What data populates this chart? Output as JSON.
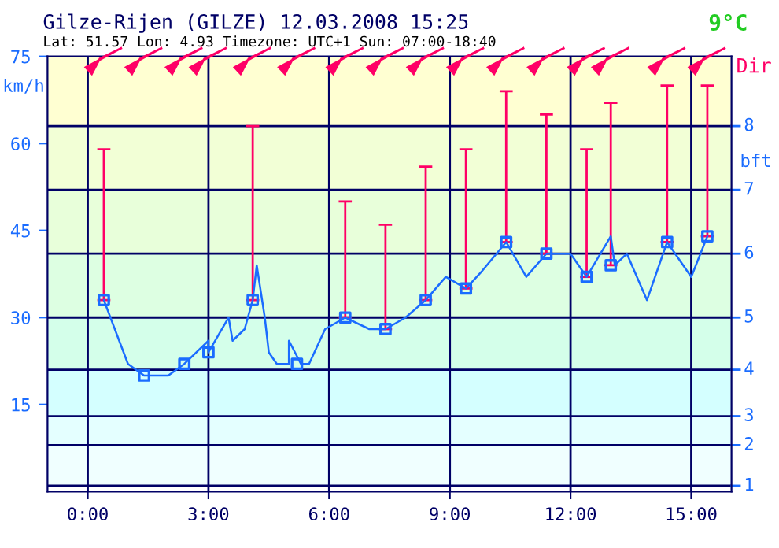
{
  "chart_data": {
    "type": "line",
    "title": "Gilze-Rijen (GILZE) 12.03.2008 15:25",
    "subtitle": "Lat: 51.57 Lon: 4.93 Timezone: UTC+1 Sun: 07:00-18:40",
    "ylabel": "km/h",
    "annotations": [
      "Dir",
      "9°C",
      "bft",
      "1",
      "2",
      "3",
      "4",
      "5",
      "6",
      "7",
      "8"
    ],
    "xlim": [
      -1,
      16
    ],
    "xticks": [
      {
        "value": 0,
        "label": "0:00"
      },
      {
        "value": 3,
        "label": "3:00"
      },
      {
        "value": 6,
        "label": "6:00"
      },
      {
        "value": 9,
        "label": "9:00"
      },
      {
        "value": 12,
        "label": "12:00"
      },
      {
        "value": 15,
        "label": "15:00"
      }
    ],
    "ylim": [
      0,
      75
    ],
    "yticks": [
      15,
      30,
      45,
      60,
      75
    ],
    "grid": "x",
    "bands": [
      {
        "axis": "y",
        "from": 1,
        "to": 8,
        "color": "#f0ffff"
      },
      {
        "axis": "y",
        "from": 8,
        "to": 13,
        "color": "#e4ffff"
      },
      {
        "axis": "y",
        "from": 13,
        "to": 21,
        "color": "#d4ffff"
      },
      {
        "axis": "y",
        "from": 21,
        "to": 30,
        "color": "#d4ffea"
      },
      {
        "axis": "y",
        "from": 30,
        "to": 41,
        "color": "#ddffe2"
      },
      {
        "axis": "y",
        "from": 41,
        "to": 52,
        "color": "#e8ffda"
      },
      {
        "axis": "y",
        "from": 52,
        "to": 63,
        "color": "#f2ffd6"
      },
      {
        "axis": "y",
        "from": 63,
        "to": 75,
        "color": "#ffffd2"
      }
    ],
    "ref_lines": [
      {
        "axis": "y",
        "value": 1,
        "color": "#000066"
      },
      {
        "axis": "y",
        "value": 8,
        "color": "#000066"
      },
      {
        "axis": "y",
        "value": 13,
        "color": "#000066"
      },
      {
        "axis": "y",
        "value": 21,
        "color": "#000066"
      },
      {
        "axis": "y",
        "value": 30,
        "color": "#000066"
      },
      {
        "axis": "y",
        "value": 41,
        "color": "#000066"
      },
      {
        "axis": "y",
        "value": 52,
        "color": "#000066"
      },
      {
        "axis": "y",
        "value": 63,
        "color": "#000066"
      }
    ],
    "series": [
      {
        "color": "#1a6cff",
        "marker": "none",
        "x": [
          0.4,
          1.0,
          1.4,
          2.0,
          2.4,
          3.0,
          3.0,
          3.5,
          3.6,
          3.9,
          4.1,
          4.2,
          4.4,
          4.5,
          4.7,
          5.0,
          5.0,
          5.3,
          5.5,
          5.9,
          6.4,
          7.0,
          7.4,
          7.9,
          8.4,
          8.9,
          9.4,
          9.8,
          10.4,
          10.9,
          11.4,
          12.0,
          12.4,
          13.0,
          13.1,
          13.4,
          13.9,
          14.4,
          15.0,
          15.4
        ],
        "values": [
          33,
          22,
          20,
          20,
          22,
          26,
          24,
          30,
          26,
          28,
          33,
          39,
          30,
          24,
          22,
          22,
          26,
          22,
          22,
          28,
          30,
          28,
          28,
          30,
          33,
          37,
          35,
          38,
          43,
          37,
          41,
          41,
          37,
          44,
          39,
          41,
          33,
          43,
          37,
          44
        ]
      },
      {
        "type": "scatter",
        "color": "#1a6cff",
        "marker": "square",
        "x": [
          0.4,
          1.4,
          2.4,
          3.0,
          4.1,
          5.2,
          6.4,
          7.4,
          8.4,
          9.4,
          10.4,
          11.4,
          12.4,
          13.0,
          14.4,
          15.4
        ],
        "values": [
          33,
          20,
          22,
          24,
          33,
          22,
          30,
          28,
          33,
          35,
          43,
          41,
          37,
          39,
          43,
          44
        ],
        "errors": [
          [
            33,
            59
          ],
          null,
          null,
          null,
          [
            33,
            63
          ],
          null,
          [
            30,
            50
          ],
          [
            28,
            46
          ],
          [
            33,
            56
          ],
          [
            35,
            59
          ],
          [
            43,
            69
          ],
          [
            41,
            65
          ],
          [
            37,
            59
          ],
          [
            39,
            67
          ],
          [
            43,
            70
          ],
          [
            44,
            70
          ]
        ]
      }
    ]
  }
}
